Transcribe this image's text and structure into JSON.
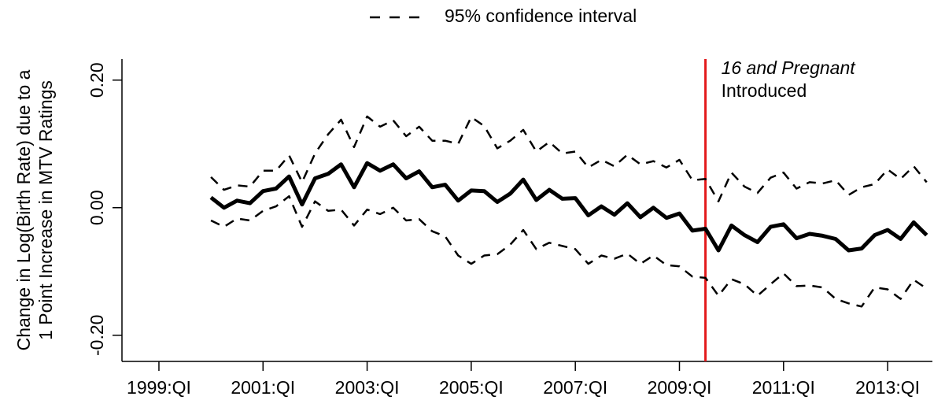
{
  "chart_data": {
    "type": "line",
    "ylabel": [
      "Change in Log(Birth Rate) due to a",
      "1 Point Increase in MTV Ratings"
    ],
    "legend": {
      "label": "95% confidence interval",
      "dash": true,
      "position": "top"
    },
    "x": [
      2000,
      2000.25,
      2000.5,
      2000.75,
      2001,
      2001.25,
      2001.5,
      2001.75,
      2002,
      2002.25,
      2002.5,
      2002.75,
      2003,
      2003.25,
      2003.5,
      2003.75,
      2004,
      2004.25,
      2004.5,
      2004.75,
      2005,
      2005.25,
      2005.5,
      2005.75,
      2006,
      2006.25,
      2006.5,
      2006.75,
      2007,
      2007.25,
      2007.5,
      2007.75,
      2008,
      2008.25,
      2008.5,
      2008.75,
      2009,
      2009.25,
      2009.5,
      2009.75,
      2010,
      2010.25,
      2010.5,
      2010.75,
      2011,
      2011.25,
      2011.5,
      2011.75,
      2012,
      2012.25,
      2012.5,
      2012.75,
      2013,
      2013.25,
      2013.5,
      2013.75
    ],
    "series": [
      {
        "color": "#000000",
        "width": 5,
        "dash": false,
        "values": [
          0.016,
          0.0,
          0.011,
          0.007,
          0.026,
          0.03,
          0.049,
          0.005,
          0.046,
          0.053,
          0.068,
          0.032,
          0.07,
          0.058,
          0.068,
          0.046,
          0.057,
          0.032,
          0.036,
          0.011,
          0.027,
          0.026,
          0.009,
          0.022,
          0.044,
          0.012,
          0.028,
          0.014,
          0.015,
          -0.012,
          0.002,
          -0.011,
          0.007,
          -0.015,
          0.0,
          -0.016,
          -0.009,
          -0.036,
          -0.033,
          -0.067,
          -0.028,
          -0.043,
          -0.054,
          -0.03,
          -0.026,
          -0.048,
          -0.041,
          -0.044,
          -0.049,
          -0.067,
          -0.064,
          -0.043,
          -0.035,
          -0.049,
          -0.023,
          -0.043
        ]
      },
      {
        "color": "#000000",
        "width": 2.5,
        "dash": true,
        "values": [
          0.048,
          0.028,
          0.035,
          0.033,
          0.058,
          0.058,
          0.082,
          0.04,
          0.085,
          0.115,
          0.138,
          0.095,
          0.143,
          0.127,
          0.137,
          0.112,
          0.127,
          0.105,
          0.105,
          0.1,
          0.142,
          0.128,
          0.093,
          0.105,
          0.122,
          0.088,
          0.103,
          0.085,
          0.088,
          0.063,
          0.075,
          0.065,
          0.083,
          0.068,
          0.073,
          0.063,
          0.075,
          0.043,
          0.045,
          0.01,
          0.055,
          0.033,
          0.023,
          0.047,
          0.055,
          0.03,
          0.04,
          0.038,
          0.043,
          0.02,
          0.032,
          0.037,
          0.06,
          0.045,
          0.065,
          0.04
        ]
      },
      {
        "color": "#000000",
        "width": 2.5,
        "dash": true,
        "values": [
          -0.02,
          -0.03,
          -0.017,
          -0.02,
          -0.005,
          0.002,
          0.018,
          -0.03,
          0.01,
          -0.005,
          -0.003,
          -0.028,
          -0.003,
          -0.01,
          0.0,
          -0.02,
          -0.018,
          -0.037,
          -0.045,
          -0.075,
          -0.088,
          -0.075,
          -0.073,
          -0.058,
          -0.035,
          -0.065,
          -0.055,
          -0.06,
          -0.065,
          -0.088,
          -0.075,
          -0.08,
          -0.072,
          -0.088,
          -0.075,
          -0.09,
          -0.092,
          -0.108,
          -0.11,
          -0.138,
          -0.112,
          -0.12,
          -0.138,
          -0.12,
          -0.103,
          -0.123,
          -0.122,
          -0.125,
          -0.143,
          -0.15,
          -0.155,
          -0.125,
          -0.128,
          -0.143,
          -0.113,
          -0.127
        ]
      }
    ],
    "annotations": [
      {
        "x": 2009.5,
        "color": "#e31a1c",
        "lines": [
          {
            "text": "16 and Pregnant",
            "italic": true
          },
          {
            "text": "Introduced",
            "italic": false
          }
        ]
      }
    ],
    "xlim": [
      1998.29,
      2013.86
    ],
    "xticks": [
      {
        "value": 1999,
        "label": "1999:QI"
      },
      {
        "value": 2001,
        "label": "2001:QI"
      },
      {
        "value": 2003,
        "label": "2003:QI"
      },
      {
        "value": 2005,
        "label": "2005:QI"
      },
      {
        "value": 2007,
        "label": "2007:QI"
      },
      {
        "value": 2009,
        "label": "2009:QI"
      },
      {
        "value": 2011,
        "label": "2011:QI"
      },
      {
        "value": 2013,
        "label": "2013:QI"
      }
    ],
    "ylim": [
      -0.241,
      0.233
    ],
    "yticks": [
      {
        "value": -0.2,
        "label": "-0.20"
      },
      {
        "value": 0,
        "label": "0.00"
      },
      {
        "value": 0.2,
        "label": "0.20"
      }
    ]
  }
}
